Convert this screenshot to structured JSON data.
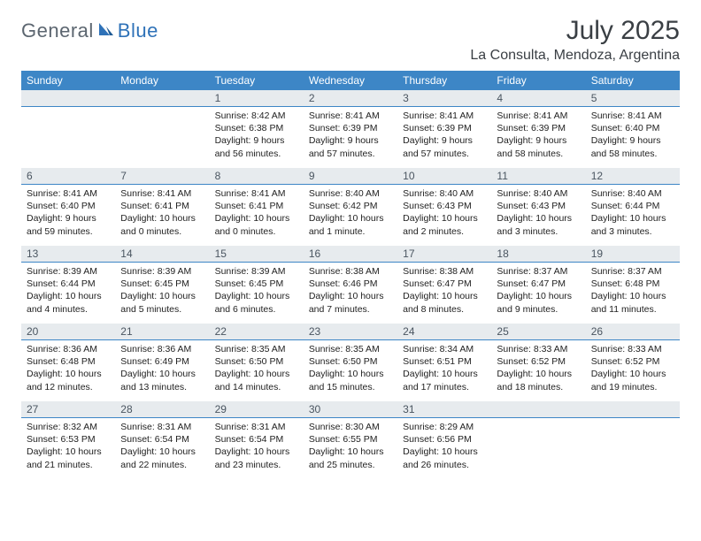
{
  "logo": {
    "text1": "General",
    "text2": "Blue"
  },
  "title": "July 2025",
  "location": "La Consulta, Mendoza, Argentina",
  "dayNames": [
    "Sunday",
    "Monday",
    "Tuesday",
    "Wednesday",
    "Thursday",
    "Friday",
    "Saturday"
  ],
  "colors": {
    "headerBg": "#3d86c6",
    "dayBarBg": "#e7ebee",
    "dayBarBorder": "#3d86c6",
    "logoGray": "#5c6670",
    "logoBlue": "#2f72b8"
  },
  "weeks": [
    [
      {
        "n": "",
        "sr": "",
        "ss": "",
        "dl1": "",
        "dl2": ""
      },
      {
        "n": "",
        "sr": "",
        "ss": "",
        "dl1": "",
        "dl2": ""
      },
      {
        "n": "1",
        "sr": "Sunrise: 8:42 AM",
        "ss": "Sunset: 6:38 PM",
        "dl1": "Daylight: 9 hours",
        "dl2": "and 56 minutes."
      },
      {
        "n": "2",
        "sr": "Sunrise: 8:41 AM",
        "ss": "Sunset: 6:39 PM",
        "dl1": "Daylight: 9 hours",
        "dl2": "and 57 minutes."
      },
      {
        "n": "3",
        "sr": "Sunrise: 8:41 AM",
        "ss": "Sunset: 6:39 PM",
        "dl1": "Daylight: 9 hours",
        "dl2": "and 57 minutes."
      },
      {
        "n": "4",
        "sr": "Sunrise: 8:41 AM",
        "ss": "Sunset: 6:39 PM",
        "dl1": "Daylight: 9 hours",
        "dl2": "and 58 minutes."
      },
      {
        "n": "5",
        "sr": "Sunrise: 8:41 AM",
        "ss": "Sunset: 6:40 PM",
        "dl1": "Daylight: 9 hours",
        "dl2": "and 58 minutes."
      }
    ],
    [
      {
        "n": "6",
        "sr": "Sunrise: 8:41 AM",
        "ss": "Sunset: 6:40 PM",
        "dl1": "Daylight: 9 hours",
        "dl2": "and 59 minutes."
      },
      {
        "n": "7",
        "sr": "Sunrise: 8:41 AM",
        "ss": "Sunset: 6:41 PM",
        "dl1": "Daylight: 10 hours",
        "dl2": "and 0 minutes."
      },
      {
        "n": "8",
        "sr": "Sunrise: 8:41 AM",
        "ss": "Sunset: 6:41 PM",
        "dl1": "Daylight: 10 hours",
        "dl2": "and 0 minutes."
      },
      {
        "n": "9",
        "sr": "Sunrise: 8:40 AM",
        "ss": "Sunset: 6:42 PM",
        "dl1": "Daylight: 10 hours",
        "dl2": "and 1 minute."
      },
      {
        "n": "10",
        "sr": "Sunrise: 8:40 AM",
        "ss": "Sunset: 6:43 PM",
        "dl1": "Daylight: 10 hours",
        "dl2": "and 2 minutes."
      },
      {
        "n": "11",
        "sr": "Sunrise: 8:40 AM",
        "ss": "Sunset: 6:43 PM",
        "dl1": "Daylight: 10 hours",
        "dl2": "and 3 minutes."
      },
      {
        "n": "12",
        "sr": "Sunrise: 8:40 AM",
        "ss": "Sunset: 6:44 PM",
        "dl1": "Daylight: 10 hours",
        "dl2": "and 3 minutes."
      }
    ],
    [
      {
        "n": "13",
        "sr": "Sunrise: 8:39 AM",
        "ss": "Sunset: 6:44 PM",
        "dl1": "Daylight: 10 hours",
        "dl2": "and 4 minutes."
      },
      {
        "n": "14",
        "sr": "Sunrise: 8:39 AM",
        "ss": "Sunset: 6:45 PM",
        "dl1": "Daylight: 10 hours",
        "dl2": "and 5 minutes."
      },
      {
        "n": "15",
        "sr": "Sunrise: 8:39 AM",
        "ss": "Sunset: 6:45 PM",
        "dl1": "Daylight: 10 hours",
        "dl2": "and 6 minutes."
      },
      {
        "n": "16",
        "sr": "Sunrise: 8:38 AM",
        "ss": "Sunset: 6:46 PM",
        "dl1": "Daylight: 10 hours",
        "dl2": "and 7 minutes."
      },
      {
        "n": "17",
        "sr": "Sunrise: 8:38 AM",
        "ss": "Sunset: 6:47 PM",
        "dl1": "Daylight: 10 hours",
        "dl2": "and 8 minutes."
      },
      {
        "n": "18",
        "sr": "Sunrise: 8:37 AM",
        "ss": "Sunset: 6:47 PM",
        "dl1": "Daylight: 10 hours",
        "dl2": "and 9 minutes."
      },
      {
        "n": "19",
        "sr": "Sunrise: 8:37 AM",
        "ss": "Sunset: 6:48 PM",
        "dl1": "Daylight: 10 hours",
        "dl2": "and 11 minutes."
      }
    ],
    [
      {
        "n": "20",
        "sr": "Sunrise: 8:36 AM",
        "ss": "Sunset: 6:48 PM",
        "dl1": "Daylight: 10 hours",
        "dl2": "and 12 minutes."
      },
      {
        "n": "21",
        "sr": "Sunrise: 8:36 AM",
        "ss": "Sunset: 6:49 PM",
        "dl1": "Daylight: 10 hours",
        "dl2": "and 13 minutes."
      },
      {
        "n": "22",
        "sr": "Sunrise: 8:35 AM",
        "ss": "Sunset: 6:50 PM",
        "dl1": "Daylight: 10 hours",
        "dl2": "and 14 minutes."
      },
      {
        "n": "23",
        "sr": "Sunrise: 8:35 AM",
        "ss": "Sunset: 6:50 PM",
        "dl1": "Daylight: 10 hours",
        "dl2": "and 15 minutes."
      },
      {
        "n": "24",
        "sr": "Sunrise: 8:34 AM",
        "ss": "Sunset: 6:51 PM",
        "dl1": "Daylight: 10 hours",
        "dl2": "and 17 minutes."
      },
      {
        "n": "25",
        "sr": "Sunrise: 8:33 AM",
        "ss": "Sunset: 6:52 PM",
        "dl1": "Daylight: 10 hours",
        "dl2": "and 18 minutes."
      },
      {
        "n": "26",
        "sr": "Sunrise: 8:33 AM",
        "ss": "Sunset: 6:52 PM",
        "dl1": "Daylight: 10 hours",
        "dl2": "and 19 minutes."
      }
    ],
    [
      {
        "n": "27",
        "sr": "Sunrise: 8:32 AM",
        "ss": "Sunset: 6:53 PM",
        "dl1": "Daylight: 10 hours",
        "dl2": "and 21 minutes."
      },
      {
        "n": "28",
        "sr": "Sunrise: 8:31 AM",
        "ss": "Sunset: 6:54 PM",
        "dl1": "Daylight: 10 hours",
        "dl2": "and 22 minutes."
      },
      {
        "n": "29",
        "sr": "Sunrise: 8:31 AM",
        "ss": "Sunset: 6:54 PM",
        "dl1": "Daylight: 10 hours",
        "dl2": "and 23 minutes."
      },
      {
        "n": "30",
        "sr": "Sunrise: 8:30 AM",
        "ss": "Sunset: 6:55 PM",
        "dl1": "Daylight: 10 hours",
        "dl2": "and 25 minutes."
      },
      {
        "n": "31",
        "sr": "Sunrise: 8:29 AM",
        "ss": "Sunset: 6:56 PM",
        "dl1": "Daylight: 10 hours",
        "dl2": "and 26 minutes."
      },
      {
        "n": "",
        "sr": "",
        "ss": "",
        "dl1": "",
        "dl2": ""
      },
      {
        "n": "",
        "sr": "",
        "ss": "",
        "dl1": "",
        "dl2": ""
      }
    ]
  ]
}
